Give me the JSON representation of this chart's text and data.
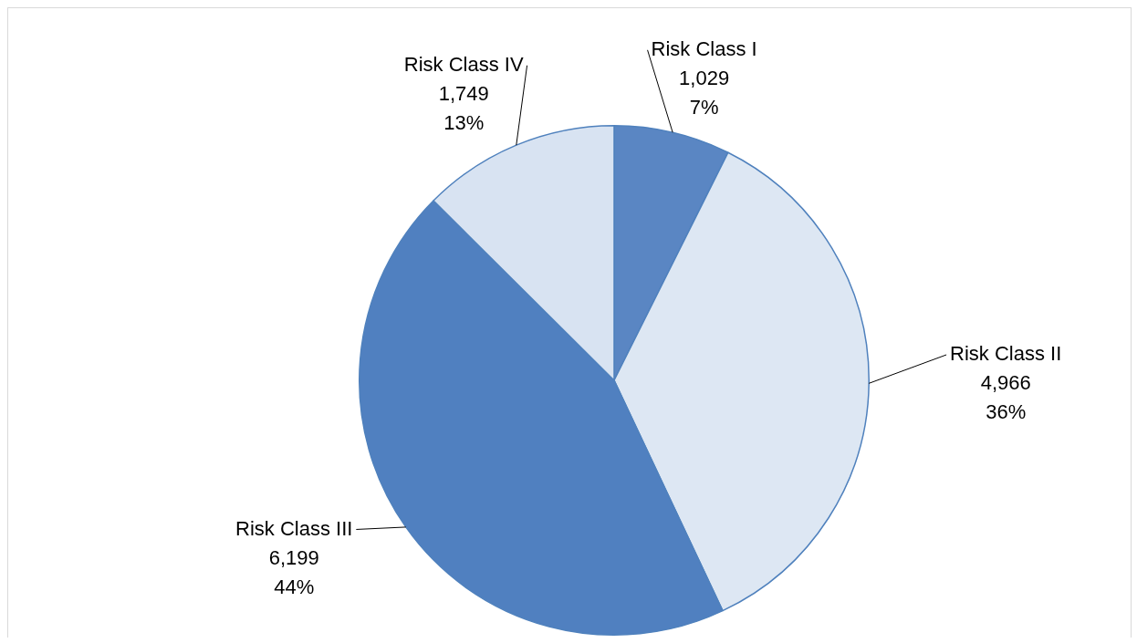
{
  "chart_data": {
    "type": "pie",
    "categories": [
      "Risk Class I",
      "Risk Class II",
      "Risk Class III",
      "Risk Class IV"
    ],
    "values": [
      1029,
      4966,
      6199,
      1749
    ],
    "colors": [
      "#5a86c3",
      "#dde7f3",
      "#5080c0",
      "#d8e3f2"
    ],
    "value_labels": [
      "1,029\n7%",
      "4,966\n36%",
      "6,199\n44%",
      "1,749\n13%"
    ],
    "legend": false
  }
}
